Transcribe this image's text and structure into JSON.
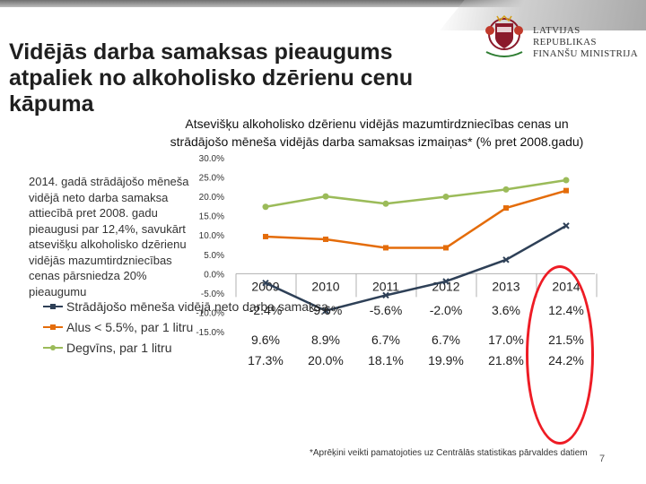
{
  "slide_title": "Vidējās darba samaksas pieaugums atpaliek no alkoholisko dzērienu cenu kāpuma",
  "logo_text": "LATVIJAS REPUBLIKAS\nFINANŠU MINISTRIJA",
  "chart_title_line1": "Atsevišķu alkoholisko dzērienu vidējās mazumtirdzniecības cenas un",
  "chart_title_line2": "strādājošo mēneša vidējās darba samaksas izmaiņas* (% pret 2008.gadu)",
  "left_note": "2014. gadā strādājošo mēneša vidējā neto darba samaksa attiecībā pret 2008. gadu pieaugusi par 12,4%, savukārt atsevišķu alkoholisko dzērienu vidējās mazumtirdzniecības cenas pārsniedza 20% pieaugumu",
  "footnote": "*Aprēķini veikti pamatojoties uz Centrālās statistikas pārvaldes datiem",
  "page_number": "7",
  "chart_data": {
    "type": "line",
    "title": "Atsevišķu alkoholisko dzērienu vidējās mazumtirdzniecības cenas un strādājošo mēneša vidējās darba samaksas izmaiņas* (% pret 2008.gadu)",
    "categories": [
      "2009",
      "2010",
      "2011",
      "2012",
      "2013",
      "2014"
    ],
    "ylim": [
      -15,
      30
    ],
    "y_ticks": [
      "30.0%",
      "25.0%",
      "20.0%",
      "15.0%",
      "10.0%",
      "5.0%",
      "0.0%",
      "-5.0%",
      "-10.0%",
      "-15.0%"
    ],
    "grid": false,
    "legend_position": "left",
    "series": [
      {
        "name": "Strādājošo mēneša vidējā neto darba samaksa",
        "color": "#2e4057",
        "marker": "cross",
        "values": [
          -2.4,
          -9.6,
          -5.6,
          -2.0,
          3.6,
          12.4
        ],
        "labels": [
          "-2.4%",
          "-9.6%",
          "-5.6%",
          "-2.0%",
          "3.6%",
          "12.4%"
        ]
      },
      {
        "name": "Alus < 5.5%, par 1 litru",
        "color": "#e46c0a",
        "marker": "square",
        "values": [
          9.6,
          8.9,
          6.7,
          6.7,
          17.0,
          21.5
        ],
        "labels": [
          "9.6%",
          "8.9%",
          "6.7%",
          "6.7%",
          "17.0%",
          "21.5%"
        ]
      },
      {
        "name": "Degvīns, par 1 litru",
        "color": "#9bbb59",
        "marker": "circle",
        "values": [
          17.3,
          20.0,
          18.1,
          19.9,
          21.8,
          24.2
        ],
        "labels": [
          "17.3%",
          "20.0%",
          "18.1%",
          "19.9%",
          "21.8%",
          "24.2%"
        ]
      }
    ]
  }
}
